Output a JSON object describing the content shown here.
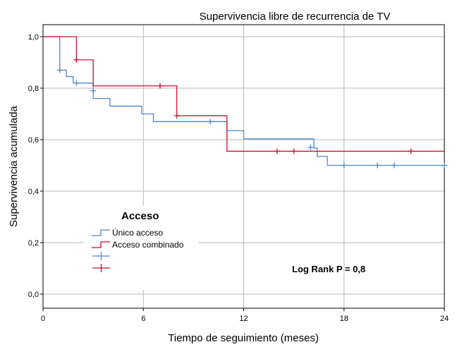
{
  "chart_data": {
    "type": "step-line",
    "title": "Supervivencia libre de recurrencia de TV",
    "xlabel": "Tiempo de seguimiento (meses)",
    "ylabel": "Supervivencia acumulada",
    "xlim": [
      0,
      24
    ],
    "ylim": [
      0,
      1
    ],
    "x_ticks": [
      0,
      6,
      12,
      18,
      24
    ],
    "x_tick_labels": [
      "0",
      "6",
      "12",
      "18",
      "24"
    ],
    "y_ticks": [
      0,
      0.2,
      0.4,
      0.6,
      0.8,
      1.0
    ],
    "y_tick_labels": [
      "0,0",
      "0,2",
      "0,4",
      "0,6",
      "0,8",
      "1,0"
    ],
    "grid": true,
    "legend": {
      "title": "Acceso",
      "placement": "middle-left",
      "entries": [
        "Único acceso",
        "Acceso combinado"
      ]
    },
    "annotation": "Log Rank P = 0,8",
    "series": [
      {
        "name": "Único acceso",
        "color": "#4f86d0",
        "steps": [
          [
            0,
            1.0
          ],
          [
            1.0,
            0.87
          ],
          [
            1.4,
            0.845
          ],
          [
            1.8,
            0.82
          ],
          [
            3.0,
            0.76
          ],
          [
            4.0,
            0.73
          ],
          [
            5.9,
            0.7
          ],
          [
            6.6,
            0.67
          ],
          [
            11.0,
            0.635
          ],
          [
            12.0,
            0.603
          ],
          [
            16.2,
            0.567
          ],
          [
            16.4,
            0.535
          ],
          [
            17.0,
            0.5
          ],
          [
            24.0,
            0.5
          ]
        ],
        "censored": [
          [
            1.0,
            0.87
          ],
          [
            2.0,
            0.82
          ],
          [
            3.0,
            0.79
          ],
          [
            10.0,
            0.67
          ],
          [
            16.0,
            0.57
          ],
          [
            18.0,
            0.5
          ],
          [
            20.0,
            0.5
          ],
          [
            21.0,
            0.5
          ],
          [
            24.0,
            0.5
          ]
        ]
      },
      {
        "name": "Acceso combinado",
        "color": "#c8102e",
        "steps": [
          [
            0,
            1.0
          ],
          [
            2.0,
            0.91
          ],
          [
            3.0,
            0.809
          ],
          [
            8.0,
            0.693
          ],
          [
            11.0,
            0.555
          ],
          [
            24.0,
            0.555
          ]
        ],
        "censored": [
          [
            2.0,
            0.91
          ],
          [
            7.0,
            0.809
          ],
          [
            8.0,
            0.693
          ],
          [
            14.0,
            0.555
          ],
          [
            15.0,
            0.555
          ],
          [
            22.0,
            0.555
          ]
        ]
      }
    ]
  }
}
